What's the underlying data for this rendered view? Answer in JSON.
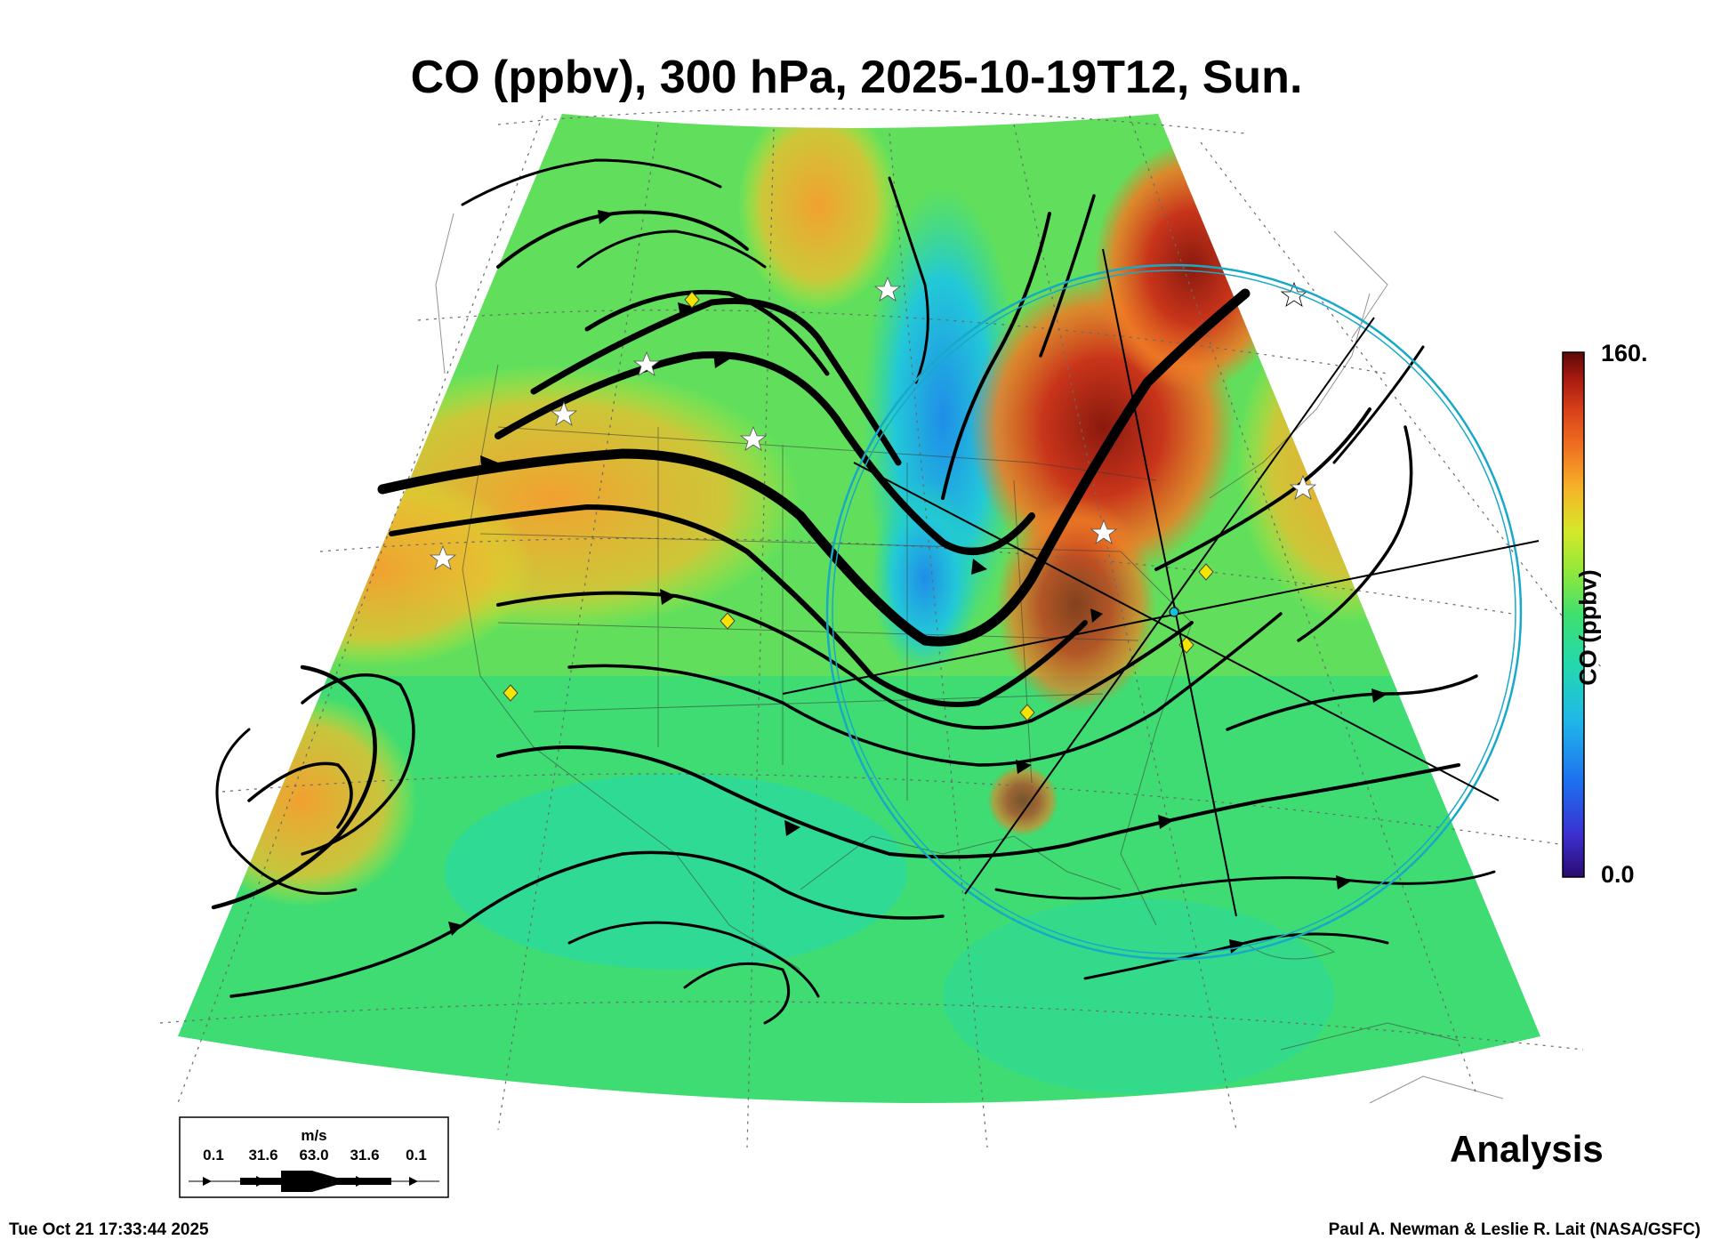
{
  "title": "CO (ppbv), 300 hPa, 2025-10-19T12, Sun.",
  "colorbar": {
    "max_label": "160.",
    "min_label": "0.0",
    "title": "CO (ppbv)",
    "range": [
      0,
      160
    ],
    "colors": [
      "#2a0b6e",
      "#3b2fd0",
      "#1e6ff0",
      "#1fb8e8",
      "#22d8b0",
      "#3fe070",
      "#8ee83a",
      "#d6e82a",
      "#f5b428",
      "#f07020",
      "#d8401a",
      "#a81a10",
      "#5c0a08"
    ]
  },
  "wind_legend": {
    "unit": "m/s",
    "values": [
      "0.1",
      "31.6",
      "63.0",
      "31.6",
      "0.1"
    ]
  },
  "analysis_label": "Analysis",
  "footer": {
    "timestamp": "Tue Oct 21 17:33:44 2025",
    "credit": "Paul A. Newman & Leslie R. Lait (NASA/GSFC)"
  }
}
